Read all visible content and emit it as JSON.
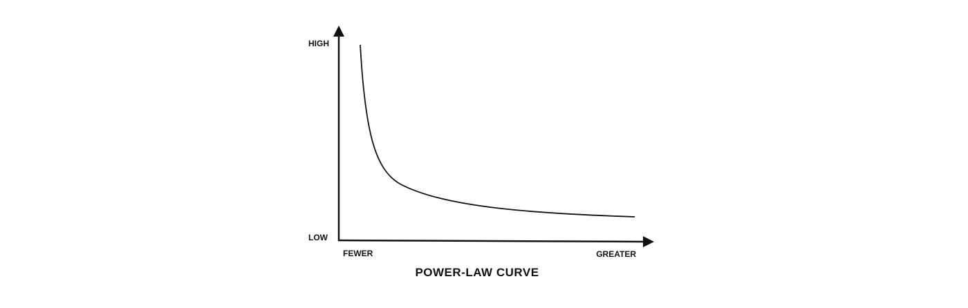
{
  "diagram": {
    "title": "POWER-LAW CURVE",
    "y_axis": {
      "high": "HIGH",
      "low": "LOW"
    },
    "x_axis": {
      "low": "FEWER",
      "high": "GREATER"
    }
  }
}
